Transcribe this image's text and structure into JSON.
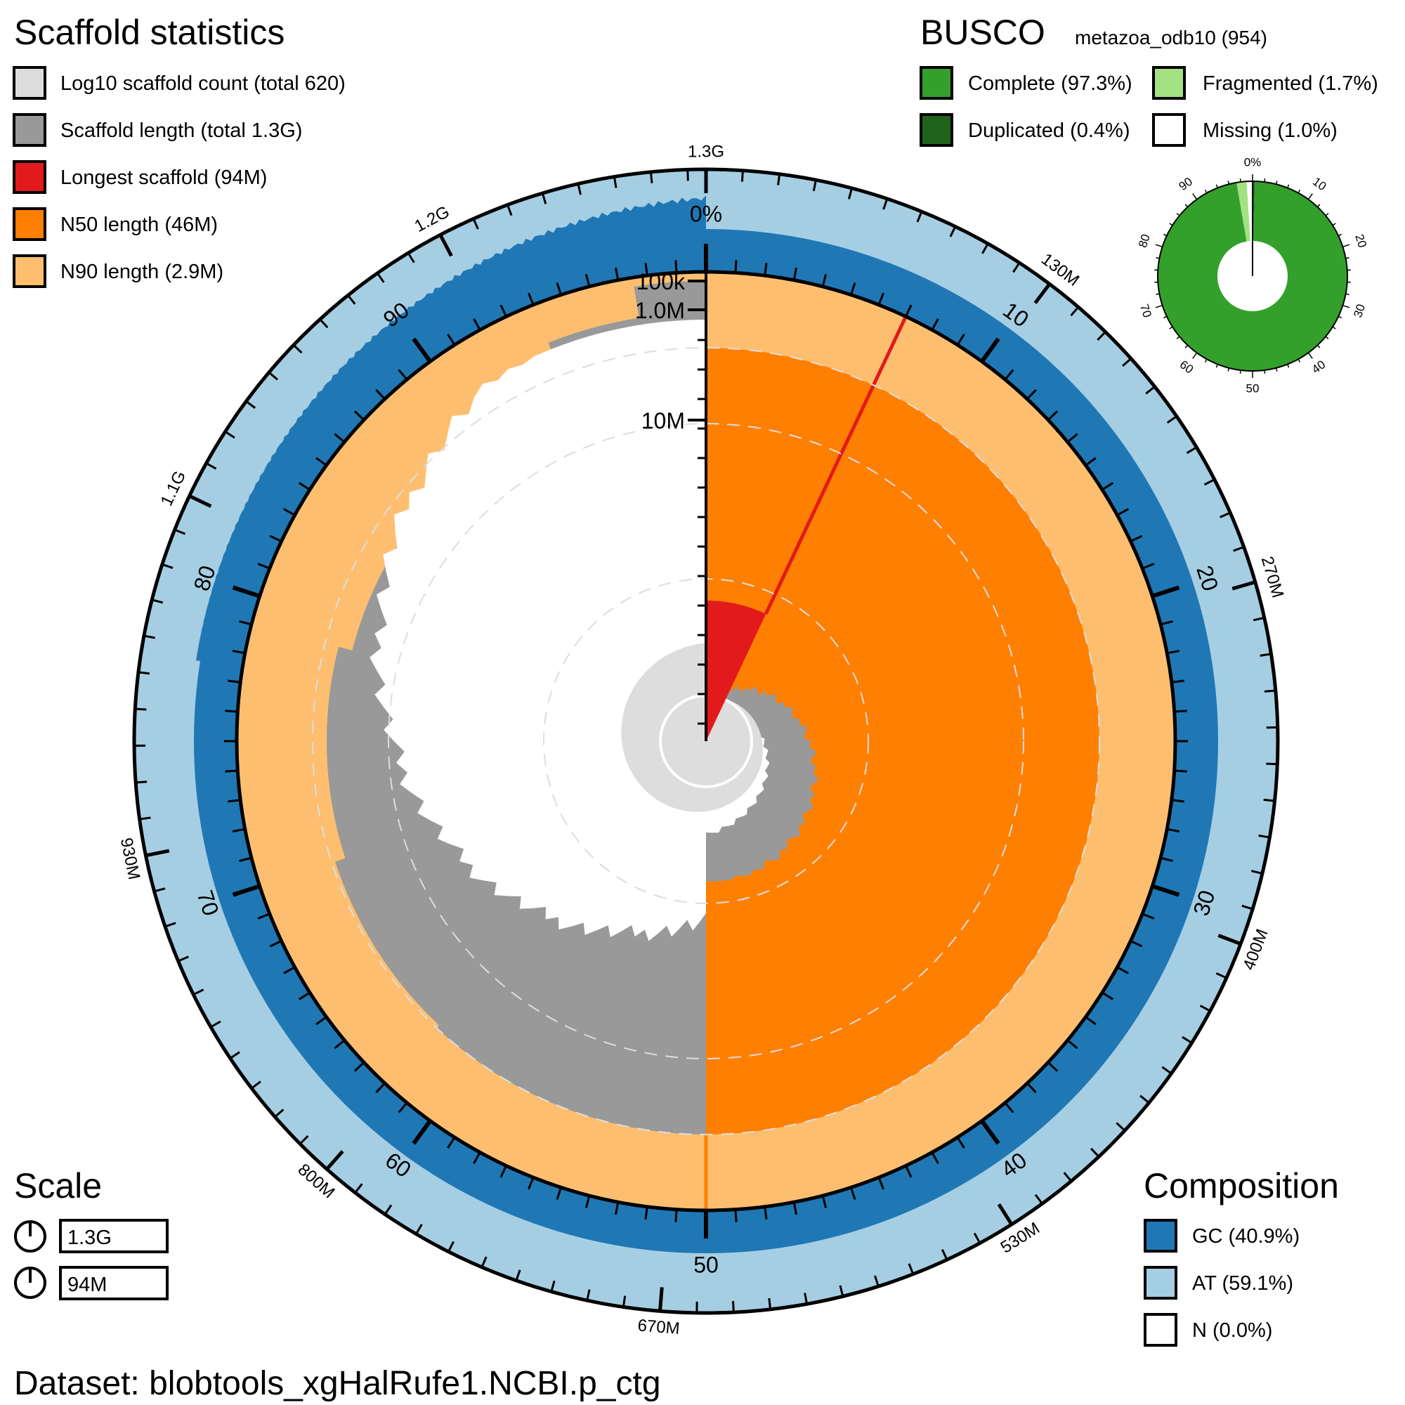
{
  "scaffold_legend": {
    "title": "Scaffold statistics",
    "items": [
      {
        "label": "Log10 scaffold count (total 620)",
        "color": "#dddddd"
      },
      {
        "label": "Scaffold length (total 1.3G)",
        "color": "#999999"
      },
      {
        "label": "Longest scaffold (94M)",
        "color": "#e31a1c"
      },
      {
        "label": "N50 length (46M)",
        "color": "#ff7f00"
      },
      {
        "label": "N90 length (2.9M)",
        "color": "#fdbf6f"
      }
    ]
  },
  "busco": {
    "title": "BUSCO",
    "lineage": "metazoa_odb10 (954)",
    "items": [
      {
        "label": "Complete (97.3%)",
        "color": "#33a02c"
      },
      {
        "label": "Fragmented (1.7%)",
        "color": "#a3e283"
      },
      {
        "label": "Duplicated (0.4%)",
        "color": "#20641c"
      },
      {
        "label": "Missing (1.0%)",
        "color": "#ffffff"
      }
    ],
    "ticks": [
      "0%",
      "10",
      "20",
      "30",
      "40",
      "50",
      "60",
      "70",
      "80",
      "90"
    ]
  },
  "scale": {
    "title": "Scale",
    "items": [
      {
        "label": "1.3G"
      },
      {
        "label": "94M"
      }
    ]
  },
  "composition": {
    "title": "Composition",
    "items": [
      {
        "label": "GC (40.9%)",
        "color": "#1f78b4"
      },
      {
        "label": "AT (59.1%)",
        "color": "#a6cee3"
      },
      {
        "label": "N (0.0%)",
        "color": "#ffffff"
      }
    ]
  },
  "dataset": "Dataset: blobtools_xgHalRufe1.NCBI.p_ctg",
  "chart_data": {
    "type": "snail",
    "total_length": "1.3G",
    "scaffold_count": 620,
    "longest_scaffold": "94M",
    "n50_length": "46M",
    "n90_length": "2.9M",
    "gc_percent": 40.9,
    "at_percent": 59.1,
    "n_percent": 0.0,
    "percent_axis": {
      "ticks": [
        "0%",
        "10",
        "20",
        "30",
        "40",
        "50",
        "60",
        "70",
        "80",
        "90"
      ],
      "n50_percent": 50,
      "n90_percent": 90
    },
    "length_axis": {
      "ticks": [
        "1.3G",
        "130M",
        "270M",
        "400M",
        "530M",
        "670M",
        "800M",
        "930M",
        "1.1G",
        "1.2G"
      ]
    },
    "radial_scale": {
      "ticks": [
        "100k",
        "1.0M",
        "10M"
      ]
    },
    "busco_complete": 97.3,
    "busco_duplicated": 0.4,
    "busco_fragmented": 1.7,
    "busco_missing": 1.0
  }
}
